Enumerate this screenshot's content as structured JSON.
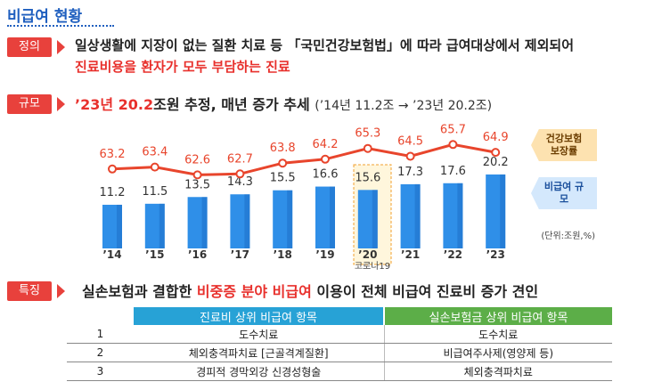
{
  "title": "비급여 현황",
  "definition": {
    "label": "정의",
    "line1": "일상생활에 지장이 없는 질환 치료 등 「국민건강보험법」에 따라 급여대상에서 제외되어",
    "line2": "진료비용을 환자가 모두 부담하는 진료"
  },
  "scale": {
    "label": "규모",
    "highlight": "’23년 20.2",
    "text": "조원 추정, 매년 증가 추세",
    "note": "(’14년 11.2조 → ’23년 20.2조)"
  },
  "chart_data": {
    "type": "combo",
    "categories": [
      "’14",
      "’15",
      "’16",
      "’17",
      "’18",
      "’19",
      "’20",
      "’21",
      "’22",
      "’23"
    ],
    "series": [
      {
        "name": "비급여 규모",
        "type": "bar",
        "color": "#2f8fe8",
        "values": [
          11.2,
          11.5,
          13.5,
          14.3,
          15.5,
          16.6,
          15.6,
          17.3,
          17.6,
          20.2
        ]
      },
      {
        "name": "건강보험 보장률",
        "type": "line",
        "color": "#e8452c",
        "values": [
          63.2,
          63.4,
          62.6,
          62.7,
          63.8,
          64.2,
          65.3,
          64.5,
          65.7,
          64.9
        ]
      }
    ],
    "annotation": "코로나19",
    "unit_note": "(단위:조원,%)"
  },
  "features": {
    "label": "특징",
    "parts": [
      "실손보험과 결합한",
      "비중증 분야 비급여",
      "이용이 전체 비급여 진료비 증가 견인"
    ]
  },
  "table": {
    "headers": [
      "진료비 상위 비급여 항목",
      "실손보험금 상위 비급여 항목"
    ],
    "rows": [
      [
        1,
        "도수치료",
        "도수치료"
      ],
      [
        2,
        "체외충격파치료 [근골격계질환]",
        "비급여주사제(영양제 등)"
      ],
      [
        3,
        "경피적 경막외강 신경성형술",
        "체외충격파치료"
      ]
    ]
  }
}
